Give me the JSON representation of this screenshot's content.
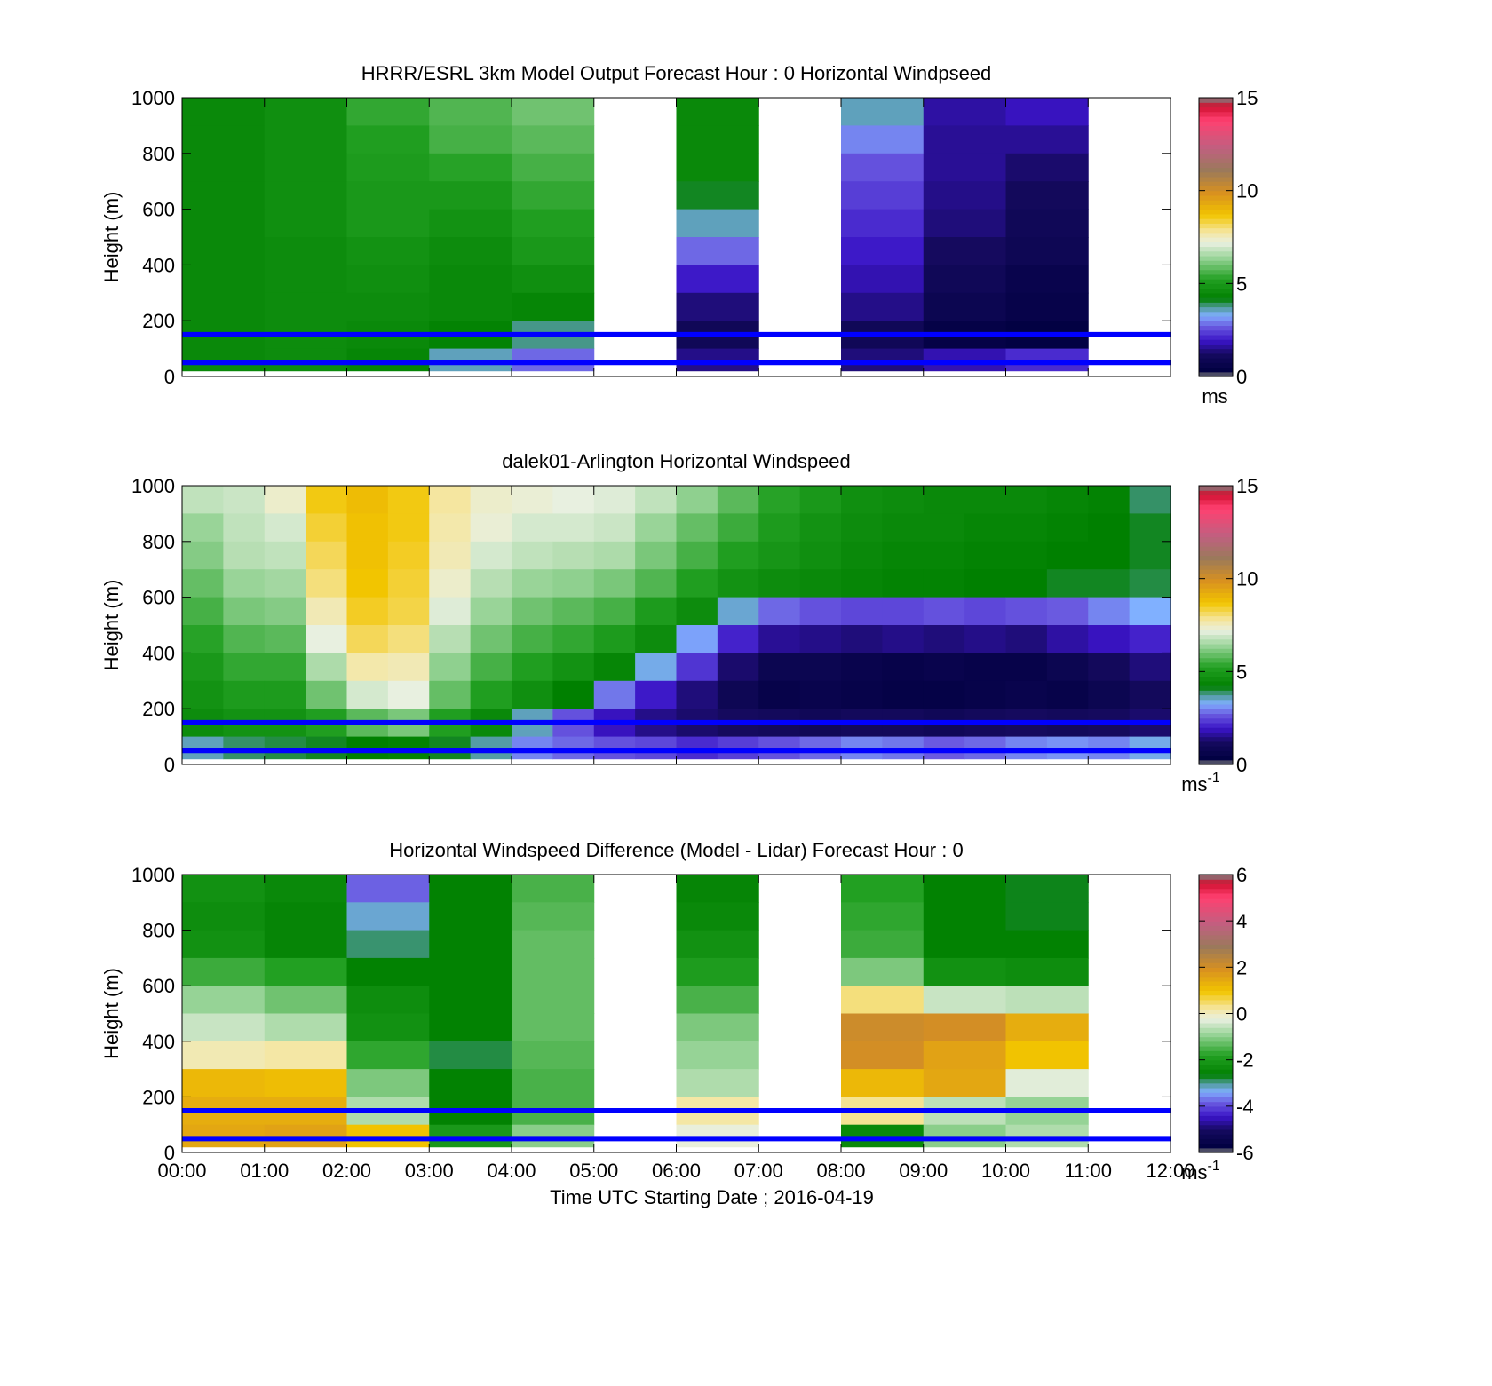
{
  "figure": {
    "xlabel": "Time UTC  Starting Date ; 2016-04-19",
    "x_ticks": [
      "00:00",
      "01:00",
      "02:00",
      "03:00",
      "04:00",
      "05:00",
      "06:00",
      "07:00",
      "08:00",
      "09:00",
      "10:00",
      "11:00",
      "12:00"
    ],
    "y_ticks": [
      "0",
      "200",
      "400",
      "600",
      "800",
      "1000"
    ],
    "ylabel": "Height (m)",
    "reference_lines_m": [
      50,
      150
    ],
    "reference_line_color": "#0000ff"
  },
  "chart_data": [
    {
      "type": "heatmap",
      "title": "HRRR/ESRL 3km Model Output   Forecast Hour : 0 Horizontal Windpseed",
      "ylabel": "Height (m)",
      "xlim": [
        0,
        12
      ],
      "ylim": [
        0,
        1000
      ],
      "colorbar": {
        "range": [
          0,
          15
        ],
        "ticks": [
          "0",
          "5",
          "10",
          "15"
        ],
        "unit_label": "ms",
        "unit_sup": ""
      },
      "x_hours": [
        0,
        1,
        2,
        3,
        4,
        5,
        6,
        7,
        8,
        9,
        10,
        11
      ],
      "heights_m": [
        1000,
        900,
        800,
        700,
        600,
        500,
        400,
        300,
        200,
        100
      ],
      "values_ms": [
        [
          4.5,
          4.7,
          5.4,
          5.7,
          6.0,
          null,
          4.5,
          null,
          3.6,
          1.7,
          1.9,
          null
        ],
        [
          4.5,
          4.7,
          5.2,
          5.6,
          5.8,
          null,
          4.5,
          null,
          3.0,
          1.6,
          1.6,
          null
        ],
        [
          4.5,
          4.7,
          5.1,
          5.3,
          5.6,
          null,
          4.5,
          null,
          2.6,
          1.6,
          1.3,
          null
        ],
        [
          4.5,
          4.7,
          5.0,
          5.0,
          5.4,
          null,
          4.1,
          null,
          2.4,
          1.5,
          1.1,
          null
        ],
        [
          4.5,
          4.7,
          5.0,
          4.8,
          5.2,
          null,
          3.6,
          null,
          2.2,
          1.4,
          1.0,
          null
        ],
        [
          4.5,
          4.6,
          4.8,
          4.6,
          5.0,
          null,
          2.8,
          null,
          2.0,
          1.2,
          0.9,
          null
        ],
        [
          4.5,
          4.6,
          4.7,
          4.5,
          4.7,
          null,
          2.0,
          null,
          1.8,
          1.0,
          0.7,
          null
        ],
        [
          4.5,
          4.6,
          4.6,
          4.5,
          4.4,
          null,
          1.4,
          null,
          1.5,
          0.8,
          0.6,
          null
        ],
        [
          4.5,
          4.6,
          4.5,
          4.3,
          3.8,
          null,
          1.0,
          null,
          1.0,
          0.5,
          0.4,
          null
        ],
        [
          4.5,
          4.6,
          4.4,
          3.6,
          2.8,
          null,
          1.5,
          null,
          1.4,
          1.8,
          2.2,
          null
        ]
      ]
    },
    {
      "type": "heatmap",
      "title": "dalek01-Arlington  Horizontal Windspeed",
      "ylabel": "Height (m)",
      "xlim": [
        0,
        12
      ],
      "ylim": [
        0,
        1000
      ],
      "colorbar": {
        "range": [
          0,
          15
        ],
        "ticks": [
          "0",
          "5",
          "10",
          "15"
        ],
        "unit_label": "ms",
        "unit_sup": "-1"
      },
      "x_hours": [
        0,
        0.5,
        1,
        1.5,
        2,
        2.5,
        3,
        3.5,
        4,
        4.5,
        5,
        5.5,
        6,
        6.5,
        7,
        7.5,
        8,
        8.5,
        9,
        9.5,
        10,
        10.5,
        11,
        11.5
      ],
      "heights_m": [
        1000,
        900,
        800,
        700,
        600,
        500,
        400,
        300,
        200,
        100
      ],
      "values_ms": [
        [
          6.8,
          6.9,
          7.4,
          8.6,
          8.9,
          8.6,
          7.8,
          7.4,
          7.3,
          7.2,
          7.1,
          6.8,
          6.3,
          5.8,
          5.3,
          5.0,
          4.7,
          4.6,
          4.5,
          4.5,
          4.5,
          4.4,
          4.3,
          3.9
        ],
        [
          6.4,
          6.8,
          7.0,
          8.4,
          8.8,
          8.6,
          7.7,
          7.3,
          7.0,
          7.0,
          6.9,
          6.4,
          5.9,
          5.5,
          5.1,
          4.8,
          4.6,
          4.5,
          4.5,
          4.4,
          4.4,
          4.3,
          4.2,
          4.1
        ],
        [
          6.2,
          6.7,
          6.8,
          8.2,
          8.8,
          8.5,
          7.6,
          7.0,
          6.8,
          6.7,
          6.6,
          6.1,
          5.6,
          5.2,
          4.9,
          4.7,
          4.5,
          4.4,
          4.4,
          4.3,
          4.3,
          4.2,
          4.2,
          4.1
        ],
        [
          5.9,
          6.4,
          6.5,
          8.0,
          8.7,
          8.4,
          7.4,
          6.7,
          6.4,
          6.3,
          6.1,
          5.7,
          5.2,
          4.8,
          4.6,
          4.5,
          4.4,
          4.3,
          4.3,
          4.2,
          4.2,
          4.1,
          4.1,
          4.0
        ],
        [
          5.6,
          6.1,
          6.2,
          7.6,
          8.5,
          8.3,
          7.1,
          6.4,
          6.0,
          5.8,
          5.6,
          5.1,
          4.6,
          3.5,
          2.8,
          2.6,
          2.5,
          2.5,
          2.6,
          2.5,
          2.6,
          2.7,
          3.0,
          3.3
        ],
        [
          5.3,
          5.7,
          5.8,
          7.2,
          8.2,
          8.0,
          6.7,
          6.0,
          5.6,
          5.4,
          5.1,
          4.6,
          3.2,
          2.1,
          1.6,
          1.5,
          1.4,
          1.5,
          1.4,
          1.5,
          1.4,
          1.7,
          1.9,
          2.1
        ],
        [
          5.0,
          5.4,
          5.4,
          6.6,
          7.7,
          7.6,
          6.3,
          5.6,
          5.2,
          4.8,
          4.4,
          3.4,
          2.3,
          1.3,
          0.8,
          0.8,
          0.7,
          0.6,
          0.7,
          0.6,
          0.6,
          0.8,
          1.1,
          1.4
        ],
        [
          4.8,
          5.1,
          5.1,
          6.0,
          7.0,
          7.2,
          5.9,
          5.2,
          4.7,
          4.2,
          2.9,
          2.0,
          1.4,
          0.9,
          0.6,
          0.7,
          0.6,
          0.5,
          0.5,
          0.6,
          0.7,
          0.6,
          0.8,
          1.1
        ],
        [
          4.6,
          4.8,
          4.8,
          5.2,
          5.8,
          6.1,
          5.2,
          4.5,
          3.6,
          2.6,
          1.9,
          1.5,
          1.3,
          1.2,
          1.1,
          1.0,
          1.1,
          1.1,
          1.0,
          1.1,
          1.2,
          1.1,
          1.2,
          1.3
        ],
        [
          3.6,
          3.9,
          4.0,
          4.1,
          4.2,
          4.3,
          4.1,
          3.7,
          3.0,
          2.8,
          2.6,
          2.5,
          2.2,
          2.4,
          2.6,
          2.8,
          3.0,
          2.9,
          2.7,
          2.8,
          3.0,
          3.1,
          3.0,
          3.4
        ]
      ]
    },
    {
      "type": "heatmap",
      "title": "Horizontal Windspeed Difference (Model - Lidar) Forecast Hour : 0",
      "ylabel": "Height (m)",
      "xlabel": "Time UTC  Starting Date ; 2016-04-19",
      "xlim": [
        0,
        12
      ],
      "ylim": [
        0,
        1000
      ],
      "colorbar": {
        "range": [
          -6,
          6
        ],
        "ticks": [
          "-6",
          "-4",
          "-2",
          "0",
          "2",
          "4",
          "6"
        ],
        "unit_label": "ms",
        "unit_sup": "-1"
      },
      "x_hours": [
        0,
        1,
        2,
        3,
        4,
        5,
        6,
        7,
        8,
        9,
        10,
        11
      ],
      "heights_m": [
        1000,
        900,
        800,
        700,
        600,
        500,
        400,
        300,
        200,
        100
      ],
      "values_ms": [
        [
          -2.2,
          -2.4,
          -3.8,
          -2.6,
          -1.5,
          null,
          -2.5,
          null,
          -1.8,
          -2.6,
          -2.7,
          null
        ],
        [
          -2.3,
          -2.5,
          -3.2,
          -2.6,
          -1.4,
          null,
          -2.4,
          null,
          -1.7,
          -2.6,
          -2.7,
          null
        ],
        [
          -2.2,
          -2.5,
          -2.9,
          -2.6,
          -1.3,
          null,
          -2.2,
          null,
          -1.6,
          -2.6,
          -2.6,
          null
        ],
        [
          -1.6,
          -1.8,
          -2.6,
          -2.6,
          -1.3,
          null,
          -1.9,
          null,
          -1.1,
          -2.2,
          -2.3,
          null
        ],
        [
          -0.9,
          -1.2,
          -2.3,
          -2.6,
          -1.3,
          null,
          -1.5,
          null,
          0.4,
          -0.5,
          -0.6,
          null
        ],
        [
          -0.5,
          -0.7,
          -2.2,
          -2.6,
          -1.3,
          null,
          -1.1,
          null,
          2.1,
          2.0,
          1.4,
          null
        ],
        [
          0.1,
          0.2,
          -1.7,
          -2.8,
          -1.4,
          null,
          -0.9,
          null,
          2.0,
          1.6,
          1.0,
          null
        ],
        [
          1.2,
          1.1,
          -1.1,
          -2.6,
          -1.5,
          null,
          -0.7,
          null,
          1.2,
          1.5,
          -0.3,
          null
        ],
        [
          1.4,
          1.4,
          -0.7,
          -2.6,
          -1.5,
          null,
          0.2,
          null,
          0.3,
          -0.6,
          -0.9,
          null
        ],
        [
          1.5,
          1.6,
          1.0,
          -2.0,
          -1.0,
          null,
          -0.2,
          null,
          -2.4,
          -1.0,
          -0.7,
          null
        ]
      ]
    }
  ]
}
